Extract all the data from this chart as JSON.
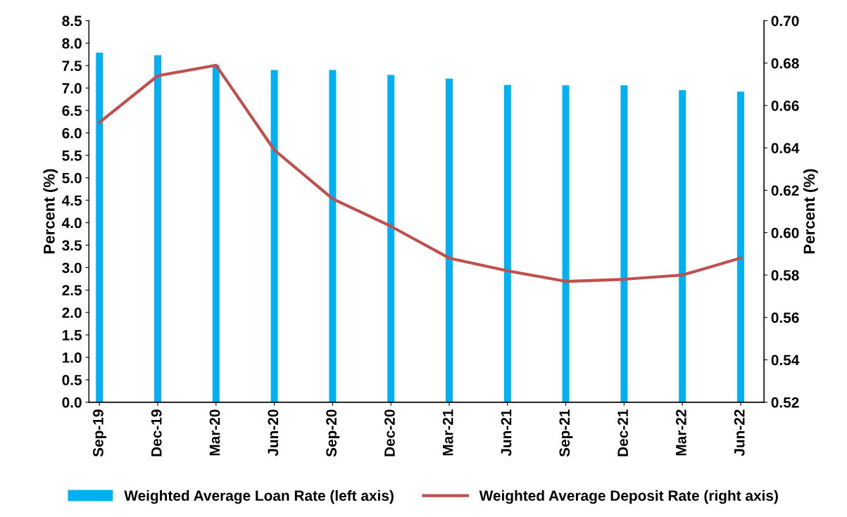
{
  "chart_data": {
    "type": "bar",
    "ylabel": "Percent (%)",
    "y2label": "Percent (%)",
    "categories": [
      "Sep-19",
      "Dec-19",
      "Mar-20",
      "Jun-20",
      "Sep-20",
      "Dec-20",
      "Mar-21",
      "Jun-21",
      "Sep-21",
      "Dec-21",
      "Mar-22",
      "Jun-22"
    ],
    "series": [
      {
        "name": "Weighted Average Loan Rate (left axis)",
        "color": "#00b0f0",
        "values": [
          7.79,
          7.73,
          7.51,
          7.4,
          7.4,
          7.29,
          7.21,
          7.07,
          7.06,
          7.06,
          6.95,
          6.92
        ]
      },
      {
        "name": "Weighted Average Deposit Rate (right axis)",
        "type": "line",
        "axis": "y2",
        "color": "#c0504d",
        "values": [
          0.652,
          0.674,
          0.679,
          0.639,
          0.616,
          0.603,
          0.588,
          0.582,
          0.577,
          0.578,
          0.58,
          0.588
        ]
      }
    ],
    "ylim": [
      0,
      8.5
    ],
    "yticks": [
      {
        "value": 0,
        "label": "0.0"
      },
      {
        "value": 0.5,
        "label": "0.5"
      },
      {
        "value": 1,
        "label": "1.0"
      },
      {
        "value": 1.5,
        "label": "1.5"
      },
      {
        "value": 2,
        "label": "2.0"
      },
      {
        "value": 2.5,
        "label": "2.5"
      },
      {
        "value": 3,
        "label": "3.0"
      },
      {
        "value": 3.5,
        "label": "3.5"
      },
      {
        "value": 4,
        "label": "4.0"
      },
      {
        "value": 4.5,
        "label": "4.5"
      },
      {
        "value": 5,
        "label": "5.0"
      },
      {
        "value": 5.5,
        "label": "5.5"
      },
      {
        "value": 6,
        "label": "6.0"
      },
      {
        "value": 6.5,
        "label": "6.5"
      },
      {
        "value": 7,
        "label": "7.0"
      },
      {
        "value": 7.5,
        "label": "7.5"
      },
      {
        "value": 8,
        "label": "8.0"
      },
      {
        "value": 8.5,
        "label": "8.5"
      }
    ],
    "y2lim": [
      0.52,
      0.7
    ],
    "y2ticks": [
      0.52,
      0.54,
      0.56,
      0.58,
      {
        "value": 0.6,
        "label": "0.60"
      },
      0.62,
      0.64,
      0.66,
      0.68,
      {
        "value": 0.7,
        "label": "0.70"
      }
    ],
    "legend": "bottom",
    "grid": false
  }
}
